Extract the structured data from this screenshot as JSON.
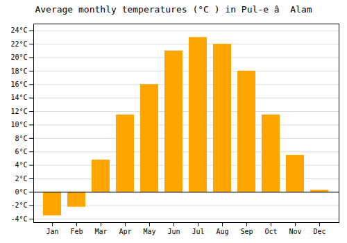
{
  "chart_data": {
    "type": "bar",
    "title": "Average monthly temperatures (°C ) in Pul-e â  Alam",
    "categories": [
      "Jan",
      "Feb",
      "Mar",
      "Apr",
      "May",
      "Jun",
      "Jul",
      "Aug",
      "Sep",
      "Oct",
      "Nov",
      "Dec"
    ],
    "values": [
      -3.5,
      -2.2,
      4.8,
      11.5,
      16.0,
      21.0,
      23.0,
      22.0,
      18.0,
      11.5,
      5.5,
      0.3
    ],
    "color": "#FFA500",
    "ylim": [
      -4.5,
      25
    ],
    "yticks": [
      {
        "value": -4,
        "label": "-4°C"
      },
      {
        "value": -2,
        "label": "-2°C"
      },
      {
        "value": 0,
        "label": "0°C"
      },
      {
        "value": 2,
        "label": "2°C"
      },
      {
        "value": 4,
        "label": "4°C"
      },
      {
        "value": 6,
        "label": "6°C"
      },
      {
        "value": 8,
        "label": "8°C"
      },
      {
        "value": 10,
        "label": "10°C"
      },
      {
        "value": 12,
        "label": "12°C"
      },
      {
        "value": 14,
        "label": "14°C"
      },
      {
        "value": 16,
        "label": "16°C"
      },
      {
        "value": 18,
        "label": "18°C"
      },
      {
        "value": 20,
        "label": "20°C"
      },
      {
        "value": 22,
        "label": "22°C"
      },
      {
        "value": 24,
        "label": "24°C"
      }
    ],
    "grid": true
  }
}
